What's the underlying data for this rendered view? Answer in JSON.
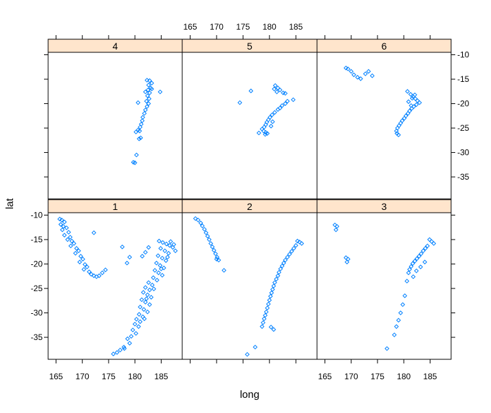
{
  "chart_data": {
    "type": "scatter",
    "layout": "lattice 3x2",
    "xlabel": "long",
    "ylabel": "lat",
    "xlim": [
      163.5,
      189
    ],
    "ylim": [
      -39.5,
      -9.5
    ],
    "xticks": [
      165,
      170,
      175,
      180,
      185
    ],
    "yticks": [
      -10,
      -15,
      -20,
      -25,
      -30,
      -35
    ],
    "colors": {
      "strip_bg": "#ffe5cc",
      "point": "#0080ff",
      "frame": "#000000"
    },
    "marker": "diamond-open",
    "panels": [
      {
        "label": "4",
        "points": [
          [
            182.3,
            -15.2
          ],
          [
            182.8,
            -15.3
          ],
          [
            183.2,
            -15.8
          ],
          [
            182.6,
            -16.2
          ],
          [
            183.0,
            -16.8
          ],
          [
            182.5,
            -17.2
          ],
          [
            182.0,
            -17.6
          ],
          [
            182.8,
            -17.8
          ],
          [
            183.2,
            -17.0
          ],
          [
            184.8,
            -17.6
          ],
          [
            182.4,
            -18.4
          ],
          [
            182.7,
            -19.0
          ],
          [
            182.2,
            -19.5
          ],
          [
            182.6,
            -20.0
          ],
          [
            180.6,
            -19.8
          ],
          [
            182.3,
            -20.6
          ],
          [
            182.0,
            -21.3
          ],
          [
            181.8,
            -22.0
          ],
          [
            181.5,
            -22.8
          ],
          [
            181.4,
            -23.5
          ],
          [
            181.2,
            -24.2
          ],
          [
            181.0,
            -24.8
          ],
          [
            180.6,
            -25.4
          ],
          [
            180.2,
            -25.8
          ],
          [
            180.9,
            -25.6
          ],
          [
            181.1,
            -27.0
          ],
          [
            180.8,
            -27.2
          ],
          [
            180.3,
            -30.5
          ],
          [
            179.7,
            -32.0
          ],
          [
            180.0,
            -32.1
          ]
        ]
      },
      {
        "label": "5",
        "points": [
          [
            174.4,
            -19.8
          ],
          [
            176.5,
            -17.4
          ],
          [
            181.1,
            -16.3
          ],
          [
            181.6,
            -16.8
          ],
          [
            182.0,
            -17.2
          ],
          [
            181.4,
            -17.6
          ],
          [
            180.9,
            -17.0
          ],
          [
            182.6,
            -17.8
          ],
          [
            183.0,
            -17.9
          ],
          [
            184.5,
            -19.2
          ],
          [
            183.4,
            -19.5
          ],
          [
            183.0,
            -20.0
          ],
          [
            182.4,
            -20.4
          ],
          [
            182.0,
            -20.9
          ],
          [
            181.6,
            -21.2
          ],
          [
            181.0,
            -21.8
          ],
          [
            180.5,
            -22.3
          ],
          [
            180.1,
            -22.8
          ],
          [
            179.8,
            -23.3
          ],
          [
            179.5,
            -23.8
          ],
          [
            179.3,
            -24.3
          ],
          [
            179.0,
            -24.8
          ],
          [
            178.6,
            -25.2
          ],
          [
            178.9,
            -25.6
          ],
          [
            179.3,
            -25.9
          ],
          [
            179.6,
            -26.1
          ],
          [
            179.2,
            -26.3
          ],
          [
            178.0,
            -26.0
          ],
          [
            180.3,
            -24.6
          ],
          [
            180.6,
            -23.7
          ]
        ]
      },
      {
        "label": "6",
        "points": [
          [
            169.0,
            -12.7
          ],
          [
            169.4,
            -12.9
          ],
          [
            170.0,
            -13.4
          ],
          [
            170.5,
            -14.1
          ],
          [
            171.2,
            -14.6
          ],
          [
            171.8,
            -14.9
          ],
          [
            172.7,
            -13.9
          ],
          [
            173.3,
            -13.4
          ],
          [
            174.0,
            -14.3
          ],
          [
            180.7,
            -17.5
          ],
          [
            181.3,
            -18.1
          ],
          [
            181.8,
            -18.6
          ],
          [
            182.2,
            -19.0
          ],
          [
            182.6,
            -19.4
          ],
          [
            183.0,
            -19.8
          ],
          [
            182.4,
            -20.2
          ],
          [
            181.9,
            -20.6
          ],
          [
            181.5,
            -21.0
          ],
          [
            181.1,
            -21.5
          ],
          [
            180.8,
            -22.0
          ],
          [
            180.4,
            -22.5
          ],
          [
            180.1,
            -23.0
          ],
          [
            179.7,
            -23.5
          ],
          [
            179.4,
            -24.0
          ],
          [
            179.1,
            -24.5
          ],
          [
            178.8,
            -25.0
          ],
          [
            178.6,
            -25.6
          ],
          [
            178.7,
            -26.1
          ],
          [
            179.0,
            -26.4
          ],
          [
            181.6,
            -18.9
          ],
          [
            182.1,
            -18.2
          ],
          [
            180.9,
            -19.6
          ],
          [
            181.4,
            -20.4
          ]
        ]
      },
      {
        "label": "1",
        "points": [
          [
            165.7,
            -10.8
          ],
          [
            166.1,
            -11.0
          ],
          [
            166.6,
            -11.4
          ],
          [
            165.9,
            -11.9
          ],
          [
            166.4,
            -12.3
          ],
          [
            167.0,
            -12.6
          ],
          [
            166.2,
            -13.0
          ],
          [
            167.4,
            -13.5
          ],
          [
            166.6,
            -14.1
          ],
          [
            167.7,
            -14.5
          ],
          [
            167.2,
            -15.0
          ],
          [
            168.0,
            -15.3
          ],
          [
            168.4,
            -15.8
          ],
          [
            167.8,
            -16.3
          ],
          [
            168.9,
            -16.8
          ],
          [
            169.3,
            -17.3
          ],
          [
            168.7,
            -17.8
          ],
          [
            169.7,
            -18.4
          ],
          [
            170.1,
            -19.0
          ],
          [
            169.5,
            -19.6
          ],
          [
            170.5,
            -20.1
          ],
          [
            170.9,
            -20.6
          ],
          [
            170.3,
            -21.1
          ],
          [
            171.3,
            -21.6
          ],
          [
            171.7,
            -22.1
          ],
          [
            172.2,
            -22.4
          ],
          [
            172.7,
            -22.6
          ],
          [
            173.2,
            -22.4
          ],
          [
            173.8,
            -21.8
          ],
          [
            174.4,
            -21.2
          ],
          [
            172.2,
            -13.6
          ],
          [
            177.6,
            -16.5
          ],
          [
            178.5,
            -19.8
          ],
          [
            179.0,
            -18.6
          ],
          [
            181.4,
            -18.4
          ],
          [
            182.6,
            -16.6
          ],
          [
            182.0,
            -17.6
          ],
          [
            184.6,
            -15.3
          ],
          [
            185.3,
            -15.6
          ],
          [
            186.0,
            -15.9
          ],
          [
            186.6,
            -16.2
          ],
          [
            187.2,
            -16.6
          ],
          [
            184.9,
            -16.8
          ],
          [
            185.7,
            -17.3
          ],
          [
            186.4,
            -17.8
          ],
          [
            184.4,
            -18.3
          ],
          [
            185.2,
            -18.8
          ],
          [
            185.9,
            -19.3
          ],
          [
            184.1,
            -19.8
          ],
          [
            184.8,
            -20.3
          ],
          [
            185.5,
            -20.8
          ],
          [
            183.8,
            -21.3
          ],
          [
            184.5,
            -21.8
          ],
          [
            185.2,
            -22.3
          ],
          [
            183.5,
            -22.8
          ],
          [
            184.2,
            -23.3
          ],
          [
            182.6,
            -23.8
          ],
          [
            183.3,
            -24.3
          ],
          [
            182.0,
            -24.8
          ],
          [
            182.8,
            -25.3
          ],
          [
            181.6,
            -25.8
          ],
          [
            182.4,
            -26.3
          ],
          [
            183.1,
            -26.8
          ],
          [
            181.3,
            -27.3
          ],
          [
            182.0,
            -27.8
          ],
          [
            182.8,
            -28.3
          ],
          [
            181.0,
            -28.8
          ],
          [
            181.7,
            -29.3
          ],
          [
            182.4,
            -29.8
          ],
          [
            180.8,
            -30.3
          ],
          [
            181.5,
            -30.8
          ],
          [
            180.3,
            -31.3
          ],
          [
            181.0,
            -31.8
          ],
          [
            180.0,
            -32.3
          ],
          [
            180.7,
            -32.8
          ],
          [
            179.6,
            -33.5
          ],
          [
            180.2,
            -34.2
          ],
          [
            179.3,
            -34.8
          ],
          [
            178.6,
            -35.3
          ],
          [
            179.0,
            -36.2
          ],
          [
            177.9,
            -37.0
          ],
          [
            177.2,
            -37.6
          ],
          [
            176.6,
            -38.1
          ],
          [
            175.9,
            -38.4
          ],
          [
            178.0,
            -37.3
          ],
          [
            186.8,
            -15.4
          ],
          [
            187.4,
            -16.0
          ],
          [
            187.7,
            -17.3
          ],
          [
            186.2,
            -18.6
          ],
          [
            185.0,
            -21.0
          ],
          [
            183.6,
            -25.1
          ],
          [
            182.2,
            -27.1
          ],
          [
            181.8,
            -31.2
          ]
        ]
      },
      {
        "label": "2",
        "points": [
          [
            166.0,
            -10.7
          ],
          [
            166.5,
            -11.0
          ],
          [
            167.0,
            -11.6
          ],
          [
            167.3,
            -12.2
          ],
          [
            167.7,
            -12.9
          ],
          [
            168.0,
            -13.6
          ],
          [
            168.3,
            -14.3
          ],
          [
            168.6,
            -15.0
          ],
          [
            168.9,
            -15.8
          ],
          [
            169.2,
            -16.5
          ],
          [
            169.5,
            -17.2
          ],
          [
            169.8,
            -17.9
          ],
          [
            170.1,
            -18.6
          ],
          [
            170.4,
            -19.2
          ],
          [
            170.0,
            -19.0
          ],
          [
            171.4,
            -21.3
          ],
          [
            185.3,
            -15.3
          ],
          [
            185.7,
            -15.5
          ],
          [
            186.1,
            -15.8
          ],
          [
            185.0,
            -16.2
          ],
          [
            184.6,
            -16.8
          ],
          [
            184.2,
            -17.4
          ],
          [
            183.8,
            -18.0
          ],
          [
            183.4,
            -18.6
          ],
          [
            183.0,
            -19.2
          ],
          [
            182.7,
            -19.8
          ],
          [
            182.4,
            -20.4
          ],
          [
            182.1,
            -21.0
          ],
          [
            181.8,
            -21.7
          ],
          [
            181.6,
            -22.4
          ],
          [
            181.3,
            -23.1
          ],
          [
            181.0,
            -23.8
          ],
          [
            180.8,
            -24.5
          ],
          [
            180.6,
            -25.2
          ],
          [
            180.4,
            -25.9
          ],
          [
            180.2,
            -26.6
          ],
          [
            180.0,
            -27.4
          ],
          [
            179.8,
            -28.2
          ],
          [
            179.6,
            -29.0
          ],
          [
            179.4,
            -29.8
          ],
          [
            179.2,
            -30.5
          ],
          [
            179.0,
            -31.2
          ],
          [
            178.8,
            -32.0
          ],
          [
            178.6,
            -32.8
          ],
          [
            180.3,
            -32.9
          ],
          [
            180.8,
            -33.4
          ],
          [
            177.3,
            -37.0
          ],
          [
            175.8,
            -38.5
          ]
        ]
      },
      {
        "label": "3",
        "points": [
          [
            166.9,
            -12.0
          ],
          [
            167.3,
            -12.3
          ],
          [
            167.1,
            -13.0
          ],
          [
            169.0,
            -18.7
          ],
          [
            169.4,
            -19.0
          ],
          [
            169.2,
            -19.6
          ],
          [
            184.9,
            -15.0
          ],
          [
            185.3,
            -15.4
          ],
          [
            185.7,
            -15.8
          ],
          [
            184.5,
            -16.3
          ],
          [
            184.1,
            -16.8
          ],
          [
            183.7,
            -17.3
          ],
          [
            183.3,
            -17.9
          ],
          [
            182.9,
            -18.4
          ],
          [
            182.5,
            -18.9
          ],
          [
            182.1,
            -19.4
          ],
          [
            181.7,
            -19.9
          ],
          [
            181.4,
            -20.5
          ],
          [
            181.1,
            -21.1
          ],
          [
            180.9,
            -21.8
          ],
          [
            182.4,
            -21.4
          ],
          [
            183.2,
            -20.6
          ],
          [
            184.0,
            -19.6
          ],
          [
            181.8,
            -22.6
          ],
          [
            180.6,
            -23.5
          ],
          [
            180.2,
            -26.5
          ],
          [
            179.8,
            -28.3
          ],
          [
            179.4,
            -30.0
          ],
          [
            179.0,
            -31.5
          ],
          [
            178.6,
            -32.8
          ],
          [
            178.2,
            -34.5
          ],
          [
            176.8,
            -37.3
          ]
        ]
      }
    ]
  }
}
